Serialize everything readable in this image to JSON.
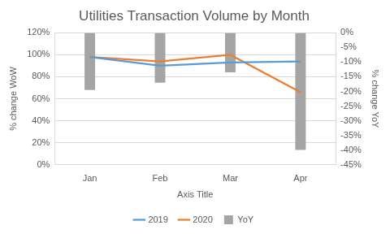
{
  "chart_data": {
    "type": "line",
    "title": "Utilities Transaction Volume by Month",
    "x_label": "Axis Title",
    "y_label": "% change WoW",
    "y2_label": "% change YoY",
    "categories": [
      "Jan",
      "Feb",
      "Mar",
      "Apr"
    ],
    "series": [
      {
        "name": "YoY",
        "type": "bar",
        "axis": "y2",
        "color": "#a5a5a5",
        "values": [
          -19.5,
          -17,
          -13.5,
          -40
        ]
      },
      {
        "name": "2019",
        "type": "line",
        "color": "#5b9bd5",
        "line_style": "solid",
        "marker": "none",
        "values": [
          98,
          90,
          93,
          94
        ]
      },
      {
        "name": "2020",
        "type": "line",
        "color": "#ed7d31",
        "line_style": "solid",
        "marker": "none",
        "values": [
          98,
          94,
          100,
          66
        ]
      }
    ],
    "ylim": [
      0,
      120
    ],
    "yticks": [
      {
        "value": 0,
        "label": "0%"
      },
      {
        "value": 20,
        "label": "20%"
      },
      {
        "value": 40,
        "label": "40%"
      },
      {
        "value": 60,
        "label": "60%"
      },
      {
        "value": 80,
        "label": "80%"
      },
      {
        "value": 100,
        "label": "100%"
      },
      {
        "value": 120,
        "label": "120%"
      }
    ],
    "y2lim": [
      -45,
      0
    ],
    "y2ticks": [
      {
        "value": -45,
        "label": "-45%"
      },
      {
        "value": -40,
        "label": "-40%"
      },
      {
        "value": -35,
        "label": "-35%"
      },
      {
        "value": -30,
        "label": "-30%"
      },
      {
        "value": -25,
        "label": "-25%"
      },
      {
        "value": -20,
        "label": "-20%"
      },
      {
        "value": -15,
        "label": "-15%"
      },
      {
        "value": -10,
        "label": "-10%"
      },
      {
        "value": -5,
        "label": "-5%"
      },
      {
        "value": 0,
        "label": "0%"
      }
    ],
    "grid": true,
    "legend": "bottom"
  }
}
